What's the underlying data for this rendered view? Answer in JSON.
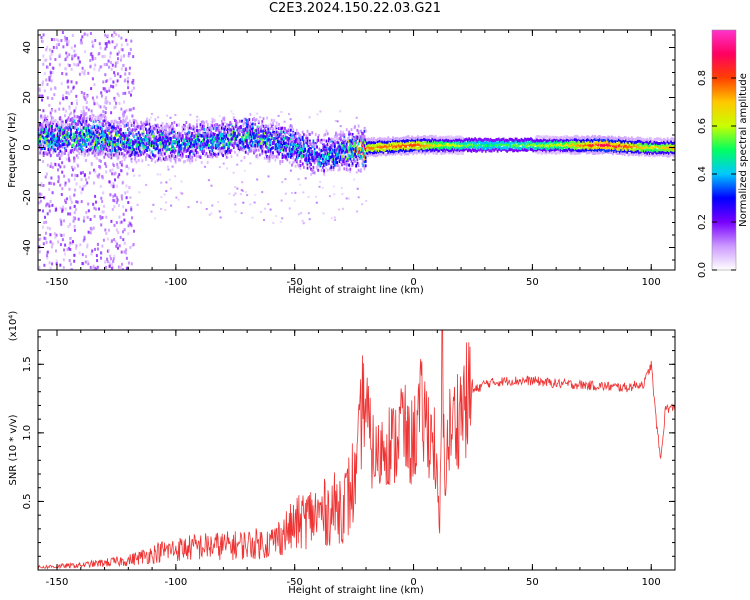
{
  "title": "C2E3.2024.150.22.03.G21",
  "chart_data": [
    {
      "type": "heatmap",
      "xlabel": "Height of straight line (km)",
      "ylabel": "Frequency (Hz)",
      "xlim": [
        -158,
        110
      ],
      "ylim": [
        -49,
        47
      ],
      "x_ticks": [
        -150,
        -100,
        -50,
        0,
        50,
        100
      ],
      "y_ticks": [
        -40,
        -20,
        0,
        20,
        40
      ],
      "colorbar": {
        "label": "Normalized spectral amplitude",
        "range": [
          0,
          1
        ],
        "ticks": [
          0.0,
          0.2,
          0.4,
          0.6,
          0.8
        ],
        "tick_labels": [
          "0.0",
          "0.2",
          "0.4",
          "0.6",
          "0.8"
        ],
        "colormap": [
          "#ffffff",
          "#cc99ff",
          "#7700ff",
          "#0000ff",
          "#00c8ff",
          "#00ff60",
          "#c8ff00",
          "#ffc800",
          "#ff4000",
          "#ff0060",
          "#ff33cc"
        ]
      },
      "ridge": [
        {
          "x": -158,
          "freq": 4.0,
          "amp": 0.45
        },
        {
          "x": -140,
          "freq": 5.0,
          "amp": 0.5
        },
        {
          "x": -120,
          "freq": 3.0,
          "amp": 0.45
        },
        {
          "x": -100,
          "freq": 2.0,
          "amp": 0.4
        },
        {
          "x": -85,
          "freq": 3.0,
          "amp": 0.4
        },
        {
          "x": -70,
          "freq": 5.0,
          "amp": 0.45
        },
        {
          "x": -55,
          "freq": 2.0,
          "amp": 0.4
        },
        {
          "x": -40,
          "freq": -3.0,
          "amp": 0.35
        },
        {
          "x": -30,
          "freq": -1.0,
          "amp": 0.45
        },
        {
          "x": -20,
          "freq": 0.0,
          "amp": 0.75
        },
        {
          "x": 0,
          "freq": 1.0,
          "amp": 0.8
        },
        {
          "x": 10,
          "freq": 1.0,
          "amp": 0.65
        },
        {
          "x": 30,
          "freq": 1.0,
          "amp": 0.5
        },
        {
          "x": 60,
          "freq": 1.0,
          "amp": 0.6
        },
        {
          "x": 80,
          "freq": 1.0,
          "amp": 0.9
        },
        {
          "x": 100,
          "freq": 0.0,
          "amp": 0.65
        },
        {
          "x": 110,
          "freq": 0.0,
          "amp": 0.75
        }
      ]
    },
    {
      "type": "line",
      "xlabel": "Height of straight line (km)",
      "ylabel": "SNR (10 * v/v)",
      "y_multiplier_label": "(x10⁴)",
      "xlim": [
        -158,
        110
      ],
      "ylim": [
        0,
        17500
      ],
      "x_ticks": [
        -150,
        -100,
        -50,
        0,
        50,
        100
      ],
      "y_ticks": [
        5000,
        10000,
        15000
      ],
      "y_tick_labels": [
        "0.5",
        "1.0",
        "1.5"
      ],
      "color": "#ee3333",
      "series": [
        {
          "x": [
            -158,
            -140,
            -120,
            -105,
            -90,
            -75,
            -60,
            -52,
            -45,
            -35,
            -28,
            -24,
            -21,
            -18,
            -15,
            -12,
            -8,
            -5,
            -2,
            0,
            3,
            6,
            9,
            11,
            12,
            13,
            15,
            18,
            20,
            25,
            30,
            35,
            40,
            50,
            60,
            70,
            80,
            90,
            94,
            97,
            100,
            102,
            104,
            106,
            110
          ],
          "y": [
            200,
            350,
            700,
            1400,
            1700,
            1800,
            2000,
            3000,
            3800,
            4300,
            5000,
            7000,
            13000,
            9000,
            8000,
            9500,
            9000,
            11000,
            9000,
            9500,
            11500,
            10500,
            9000,
            2500,
            16000,
            7000,
            10000,
            11000,
            11800,
            13000,
            13600,
            13700,
            13800,
            13800,
            13600,
            13500,
            13400,
            13300,
            13500,
            13600,
            15000,
            11000,
            8000,
            11800,
            11800
          ]
        }
      ]
    }
  ]
}
